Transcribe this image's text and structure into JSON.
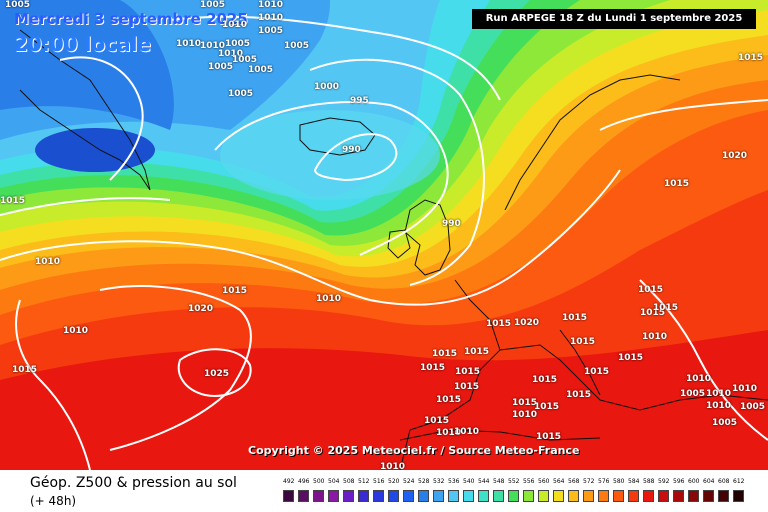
{
  "header": {
    "valid_date": "Mercredi 3 septembre 2025",
    "local_time": "20:00 locale",
    "run_info": "Run ARPEGE 18 Z du Lundi 1 septembre 2025"
  },
  "footer": {
    "title": "Géop. Z500 & pression au sol",
    "lead_time": "(+ 48h)",
    "copyright": "Copyright © 2025 Meteociel.fr / Source Meteo-France"
  },
  "legend": {
    "ticks": [
      "492",
      "496",
      "500",
      "504",
      "508",
      "512",
      "516",
      "520",
      "524",
      "528",
      "532",
      "536",
      "540",
      "544",
      "548",
      "552",
      "556",
      "560",
      "564",
      "568",
      "572",
      "576",
      "580",
      "584",
      "588",
      "592",
      "596",
      "600",
      "604",
      "608",
      "612"
    ],
    "colors": [
      "#3a0a3f",
      "#5a0f64",
      "#7a1488",
      "#8a1aa6",
      "#6a1fc4",
      "#3a2ad2",
      "#2a38dc",
      "#2049e6",
      "#1f62ef",
      "#2a7ee8",
      "#3ea4f2",
      "#54c6f4",
      "#46dcec",
      "#3fe0c8",
      "#3fe0a8",
      "#45de5a",
      "#8ee83a",
      "#c9ec2a",
      "#f5de20",
      "#fcbc1a",
      "#fd9a16",
      "#fd7a11",
      "#fb5a10",
      "#f63a10",
      "#e8170f",
      "#c80e0e",
      "#a80a0a",
      "#880808",
      "#640606",
      "#420404",
      "#200202"
    ]
  },
  "isobar_labels": [
    "1005",
    "1005",
    "1010",
    "1010",
    "1010",
    "1005",
    "1010",
    "1010",
    "1005",
    "1005",
    "1010",
    "1005",
    "1005",
    "1005",
    "1005",
    "1000",
    "995",
    "990",
    "990",
    "1015",
    "1010",
    "1015",
    "1010",
    "1020",
    "1010",
    "1015",
    "1025",
    "1015",
    "1020",
    "1015",
    "1015",
    "1015",
    "1015",
    "1010",
    "1015",
    "1015",
    "1020",
    "1015",
    "1015",
    "1015",
    "1015",
    "1015",
    "1015",
    "1015",
    "1015",
    "1015",
    "1015",
    "1015",
    "1015",
    "1015",
    "1010",
    "1015",
    "1010",
    "1010",
    "1015",
    "1010",
    "1010",
    "1005",
    "1010",
    "1010",
    "1005",
    "1005",
    "1010"
  ]
}
